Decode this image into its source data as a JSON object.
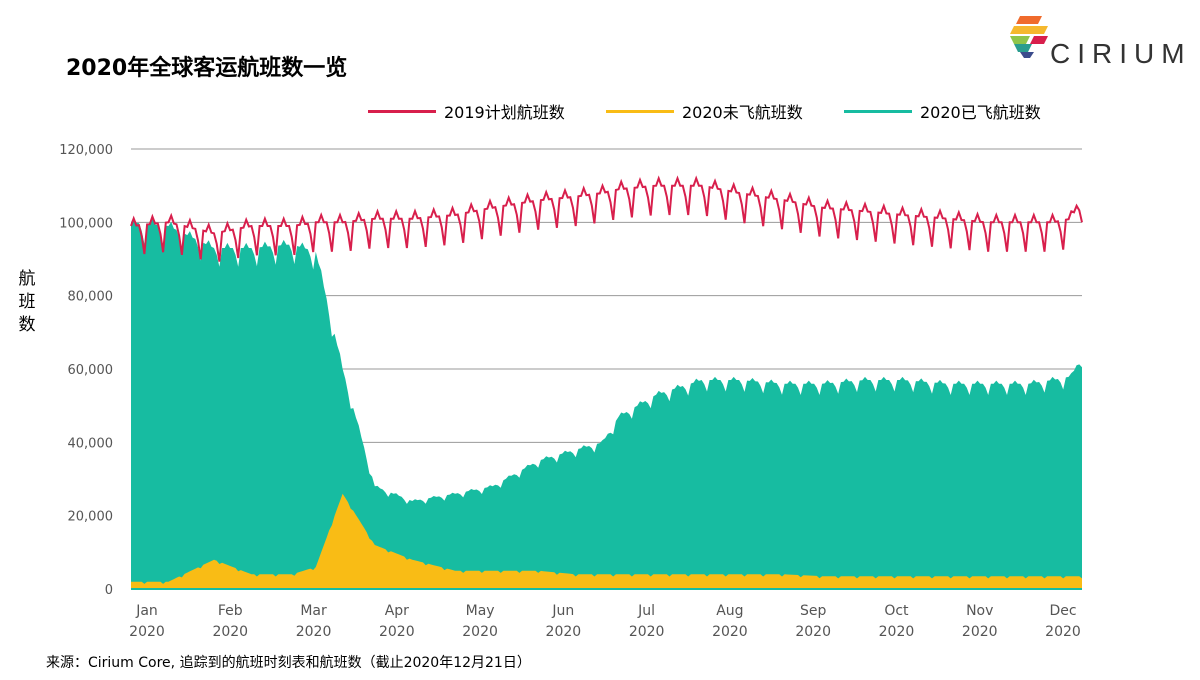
{
  "chart_data": {
    "type": "area",
    "title": "2020年全球客运航班数一览",
    "ylabel": "航班数",
    "ylim": [
      0,
      120000
    ],
    "yticks": [
      0,
      20000,
      40000,
      60000,
      80000,
      100000,
      120000
    ],
    "ytick_labels": [
      "0",
      "20,000",
      "40,000",
      "60,000",
      "80,000",
      "100,000",
      "120,000"
    ],
    "x_tick_labels": [
      {
        "month": "Jan",
        "year": "2020"
      },
      {
        "month": "Feb",
        "year": "2020"
      },
      {
        "month": "Mar",
        "year": "2020"
      },
      {
        "month": "Apr",
        "year": "2020"
      },
      {
        "month": "May",
        "year": "2020"
      },
      {
        "month": "Jun",
        "year": "2020"
      },
      {
        "month": "Jul",
        "year": "2020"
      },
      {
        "month": "Aug",
        "year": "2020"
      },
      {
        "month": "Sep",
        "year": "2020"
      },
      {
        "month": "Oct",
        "year": "2020"
      },
      {
        "month": "Nov",
        "year": "2020"
      },
      {
        "month": "Dec",
        "year": "2020"
      }
    ],
    "grid": "horizontal",
    "legend_position": "top",
    "x_dates": [
      "2020-01-01",
      "2020-01-15",
      "2020-02-01",
      "2020-02-15",
      "2020-03-01",
      "2020-03-10",
      "2020-03-20",
      "2020-04-01",
      "2020-04-15",
      "2020-05-01",
      "2020-05-15",
      "2020-06-01",
      "2020-06-15",
      "2020-06-25",
      "2020-07-01",
      "2020-07-15",
      "2020-08-01",
      "2020-08-15",
      "2020-09-01",
      "2020-09-15",
      "2020-10-01",
      "2020-10-15",
      "2020-11-01",
      "2020-11-15",
      "2020-12-01",
      "2020-12-10",
      "2020-12-17",
      "2020-12-21"
    ],
    "series": [
      {
        "name": "2019计划航班数",
        "kind": "line",
        "color": "#d81f4c",
        "values": [
          99000,
          100000,
          97000,
          99000,
          99000,
          100000,
          100000,
          101000,
          101000,
          102000,
          104000,
          106000,
          107000,
          108000,
          109000,
          110000,
          110000,
          108000,
          106000,
          104000,
          103000,
          102000,
          101000,
          100000,
          100000,
          100000,
          101000,
          108000
        ]
      },
      {
        "name": "2020未飞航班数",
        "kind": "area",
        "color": "#f9bc15",
        "values": [
          2000,
          2000,
          8000,
          4000,
          4000,
          6000,
          26000,
          12000,
          8000,
          5000,
          5000,
          5000,
          4000,
          4000,
          4000,
          4000,
          4000,
          4000,
          4000,
          3500,
          3500,
          3500,
          3500,
          3500,
          3500,
          3500,
          3500,
          3500
        ]
      },
      {
        "name": "2020已飞航班数",
        "kind": "area",
        "color": "#17bca1",
        "values": [
          100000,
          99000,
          93000,
          93000,
          94000,
          92000,
          60000,
          28000,
          24000,
          26000,
          28000,
          35000,
          38000,
          40000,
          47000,
          53000,
          57000,
          57000,
          56000,
          56000,
          57000,
          57000,
          56000,
          56000,
          56000,
          57000,
          58000,
          64000
        ]
      }
    ]
  },
  "header": {
    "title": "2020年全球客运航班数一览",
    "brand": "CIRIUM"
  },
  "source": "来源：Cirium Core, 追踪到的航班时刻表和航班数（截止2020年12月21日）"
}
